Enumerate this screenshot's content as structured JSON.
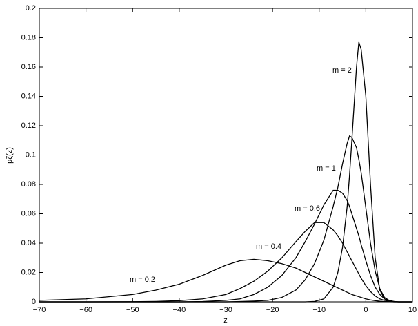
{
  "chart_data": {
    "type": "line",
    "xlabel": "z",
    "ylabel": "pζ(z)",
    "x": [
      -70,
      -60,
      -50,
      -45,
      -40,
      -35,
      -30,
      -27,
      -24,
      -21,
      -18,
      -15,
      -13,
      -11,
      -9,
      -7,
      -6,
      -5,
      -4,
      -3.5,
      -3,
      -2,
      -1.5,
      -1,
      0,
      1,
      2,
      3,
      4,
      5,
      6,
      7,
      8,
      10
    ],
    "series": [
      {
        "name": "m = 0.2",
        "color": "#000000",
        "values": [
          0.001,
          0.002,
          0.005,
          0.008,
          0.012,
          0.018,
          0.025,
          0.028,
          0.029,
          0.028,
          0.026,
          0.023,
          0.02,
          0.017,
          0.014,
          0.011,
          0.0095,
          0.008,
          0.0065,
          0.0058,
          0.005,
          0.004,
          0.0035,
          0.003,
          0.002,
          0.0013,
          0.0008,
          0.0004,
          0.0002,
          0.0001,
          0,
          0,
          0,
          0
        ]
      },
      {
        "name": "m = 0.4",
        "color": "#000000",
        "values": [
          0,
          0,
          0.0001,
          0.0003,
          0.0008,
          0.002,
          0.005,
          0.009,
          0.014,
          0.021,
          0.03,
          0.041,
          0.048,
          0.054,
          0.054,
          0.049,
          0.045,
          0.04,
          0.034,
          0.031,
          0.028,
          0.022,
          0.019,
          0.016,
          0.011,
          0.007,
          0.004,
          0.002,
          0.001,
          0.0004,
          0.0001,
          0,
          0,
          0
        ]
      },
      {
        "name": "m = 0.6",
        "color": "#000000",
        "values": [
          0,
          0,
          0,
          0,
          0,
          0.0002,
          0.001,
          0.002,
          0.005,
          0.01,
          0.018,
          0.03,
          0.041,
          0.053,
          0.066,
          0.076,
          0.076,
          0.074,
          0.069,
          0.065,
          0.06,
          0.05,
          0.045,
          0.039,
          0.028,
          0.018,
          0.01,
          0.005,
          0.002,
          0.001,
          0.0003,
          0,
          0,
          0
        ]
      },
      {
        "name": "m = 1",
        "color": "#000000",
        "values": [
          0,
          0,
          0,
          0,
          0,
          0,
          0,
          0.0002,
          0.0005,
          0.001,
          0.003,
          0.008,
          0.015,
          0.026,
          0.042,
          0.065,
          0.078,
          0.094,
          0.108,
          0.113,
          0.112,
          0.105,
          0.097,
          0.088,
          0.064,
          0.04,
          0.021,
          0.009,
          0.003,
          0.001,
          0.0002,
          0,
          0,
          0
        ]
      },
      {
        "name": "m = 2",
        "color": "#000000",
        "values": [
          0,
          0,
          0,
          0,
          0,
          0,
          0,
          0,
          0,
          0,
          0,
          0,
          0,
          0.0003,
          0.002,
          0.01,
          0.02,
          0.037,
          0.065,
          0.086,
          0.11,
          0.16,
          0.177,
          0.172,
          0.14,
          0.08,
          0.03,
          0.008,
          0.002,
          0.0003,
          0,
          0,
          0,
          0
        ]
      }
    ],
    "xlim": [
      -70,
      10
    ],
    "xticks": [
      {
        "value": -70,
        "label": "−70"
      },
      {
        "value": -60,
        "label": "−60"
      },
      {
        "value": -50,
        "label": "−50"
      },
      {
        "value": -40,
        "label": "−40"
      },
      {
        "value": -30,
        "label": "−30"
      },
      {
        "value": -20,
        "label": "−20"
      },
      {
        "value": -10,
        "label": "−10"
      },
      0,
      10
    ],
    "ylim": [
      0,
      0.2
    ],
    "yticks": [
      0,
      0.02,
      0.04,
      0.06,
      0.08,
      0.1,
      0.12,
      0.14,
      0.16,
      0.18,
      0.2
    ],
    "grid": false
  }
}
